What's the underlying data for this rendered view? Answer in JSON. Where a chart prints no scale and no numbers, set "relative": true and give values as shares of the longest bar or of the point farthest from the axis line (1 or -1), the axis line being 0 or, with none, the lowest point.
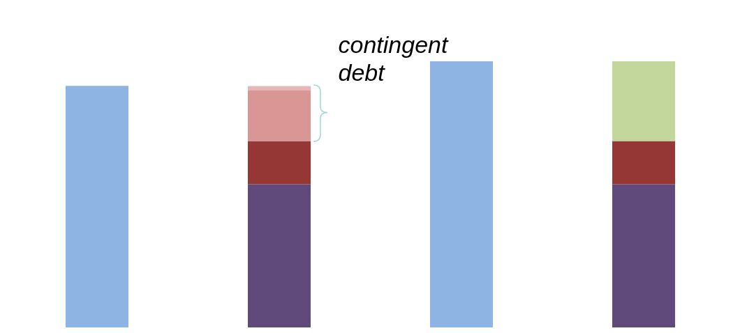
{
  "chart_data": {
    "type": "bar",
    "relative": true,
    "stacked": true,
    "categories": [
      null,
      null,
      null,
      null
    ],
    "series": [
      {
        "color": "#8eb4e3",
        "values": [
          0.908,
          null,
          1,
          null
        ]
      },
      {
        "color": "#604a7b",
        "values": [
          null,
          0.538,
          null,
          0.538
        ]
      },
      {
        "color": "#953735",
        "values": [
          null,
          0.162,
          null,
          0.162
        ]
      },
      {
        "color": "#d99694",
        "values": [
          null,
          0.192,
          null,
          null
        ]
      },
      {
        "color": "#e6b9b8",
        "values": [
          null,
          0.015,
          null,
          null
        ]
      },
      {
        "color": "#c3d69b",
        "values": [
          null,
          null,
          null,
          0.3
        ]
      }
    ],
    "annotations": [
      "contingent debt"
    ]
  }
}
